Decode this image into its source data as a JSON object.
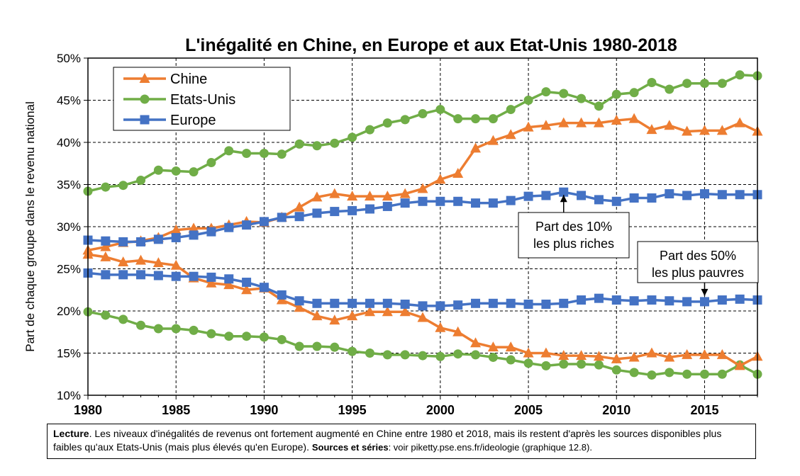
{
  "chart_data": {
    "type": "line",
    "title": "L'inégalité en Chine, en Europe et aux Etat-Unis 1980-2018",
    "ylabel": "Part de chaque groupe dans le revenu national",
    "xlabel": "",
    "xlim": [
      1980,
      2018
    ],
    "ylim": [
      0.1,
      0.5
    ],
    "x_ticks": [
      "1980",
      "1985",
      "1990",
      "1995",
      "2000",
      "2005",
      "2010",
      "2015"
    ],
    "y_ticks": [
      "10%",
      "15%",
      "20%",
      "25%",
      "30%",
      "35%",
      "40%",
      "45%",
      "50%"
    ],
    "grid": true,
    "legend_position": "top-left",
    "legend": [
      "Chine",
      "Etats-Unis",
      "Europe"
    ],
    "colors": {
      "Chine": "#ED7D31",
      "Etats-Unis": "#70AD47",
      "Europe": "#4472C4"
    },
    "markers": {
      "Chine": "triangle",
      "Etats-Unis": "circle",
      "Europe": "square"
    },
    "x": [
      1980,
      1981,
      1982,
      1983,
      1984,
      1985,
      1986,
      1987,
      1988,
      1989,
      1990,
      1991,
      1992,
      1993,
      1994,
      1995,
      1996,
      1997,
      1998,
      1999,
      2000,
      2001,
      2002,
      2003,
      2004,
      2005,
      2006,
      2007,
      2008,
      2009,
      2010,
      2011,
      2012,
      2013,
      2014,
      2015,
      2016,
      2017,
      2018
    ],
    "series": [
      {
        "name": "Chine",
        "group": "top10",
        "values": [
          0.272,
          0.276,
          0.281,
          0.283,
          0.287,
          0.296,
          0.298,
          0.298,
          0.302,
          0.306,
          0.305,
          0.311,
          0.323,
          0.335,
          0.339,
          0.336,
          0.336,
          0.336,
          0.339,
          0.345,
          0.356,
          0.363,
          0.393,
          0.402,
          0.409,
          0.418,
          0.42,
          0.423,
          0.423,
          0.423,
          0.426,
          0.428,
          0.415,
          0.42,
          0.413,
          0.414,
          0.414,
          0.423,
          0.413
        ]
      },
      {
        "name": "Etats-Unis",
        "group": "top10",
        "values": [
          0.342,
          0.347,
          0.349,
          0.355,
          0.367,
          0.366,
          0.365,
          0.376,
          0.39,
          0.387,
          0.387,
          0.386,
          0.398,
          0.396,
          0.399,
          0.406,
          0.415,
          0.423,
          0.427,
          0.434,
          0.439,
          0.428,
          0.428,
          0.428,
          0.439,
          0.45,
          0.46,
          0.458,
          0.452,
          0.443,
          0.457,
          0.459,
          0.471,
          0.463,
          0.47,
          0.47,
          0.47,
          0.48,
          0.479
        ]
      },
      {
        "name": "Europe",
        "group": "top10",
        "values": [
          0.284,
          0.283,
          0.282,
          0.282,
          0.285,
          0.287,
          0.29,
          0.294,
          0.299,
          0.302,
          0.306,
          0.311,
          0.312,
          0.316,
          0.318,
          0.319,
          0.321,
          0.324,
          0.328,
          0.33,
          0.33,
          0.33,
          0.328,
          0.328,
          0.331,
          0.336,
          0.337,
          0.341,
          0.337,
          0.332,
          0.33,
          0.334,
          0.334,
          0.339,
          0.337,
          0.339,
          0.338,
          0.338,
          0.338
        ]
      },
      {
        "name": "Chine",
        "group": "bottom50",
        "values": [
          0.267,
          0.264,
          0.258,
          0.26,
          0.257,
          0.254,
          0.239,
          0.233,
          0.231,
          0.225,
          0.227,
          0.213,
          0.204,
          0.194,
          0.189,
          0.194,
          0.199,
          0.199,
          0.199,
          0.192,
          0.18,
          0.175,
          0.162,
          0.157,
          0.157,
          0.15,
          0.15,
          0.147,
          0.147,
          0.146,
          0.143,
          0.145,
          0.15,
          0.145,
          0.148,
          0.148,
          0.148,
          0.135,
          0.146
        ]
      },
      {
        "name": "Etats-Unis",
        "group": "bottom50",
        "values": [
          0.199,
          0.195,
          0.19,
          0.183,
          0.179,
          0.179,
          0.177,
          0.173,
          0.17,
          0.17,
          0.169,
          0.166,
          0.158,
          0.158,
          0.157,
          0.152,
          0.15,
          0.148,
          0.148,
          0.147,
          0.146,
          0.149,
          0.148,
          0.145,
          0.142,
          0.138,
          0.135,
          0.137,
          0.137,
          0.136,
          0.13,
          0.127,
          0.124,
          0.127,
          0.125,
          0.125,
          0.125,
          0.136,
          0.125
        ]
      },
      {
        "name": "Europe",
        "group": "bottom50",
        "values": [
          0.245,
          0.243,
          0.243,
          0.243,
          0.242,
          0.241,
          0.241,
          0.24,
          0.238,
          0.234,
          0.228,
          0.219,
          0.212,
          0.209,
          0.209,
          0.209,
          0.209,
          0.209,
          0.208,
          0.206,
          0.206,
          0.207,
          0.209,
          0.209,
          0.209,
          0.208,
          0.208,
          0.209,
          0.213,
          0.215,
          0.213,
          0.212,
          0.213,
          0.212,
          0.211,
          0.211,
          0.213,
          0.214,
          0.213
        ]
      }
    ],
    "annotations": [
      {
        "id": "top10",
        "line1": "Part des 10%",
        "line2": "les plus riches",
        "arrow_target_year": 2007,
        "arrow_target_value": 0.341
      },
      {
        "id": "bottom50",
        "line1": "Part des 50%",
        "line2": "les plus pauvres",
        "arrow_target_year": 2015,
        "arrow_target_value": 0.211
      }
    ]
  },
  "lecture": {
    "label": "Lecture",
    "text": ". Les niveaux d'inégalités de revenus ont fortement augmenté en Chine entre 1980 et 2018, mais ils restent d'après les sources disponibles plus faibles qu'aux Etats-Unis (mais plus élevés qu'en Europe). ",
    "sources_label": "Sources et séries",
    "sources_text": ": voir piketty.pse.ens.fr/ideologie (graphique 12.8)."
  }
}
